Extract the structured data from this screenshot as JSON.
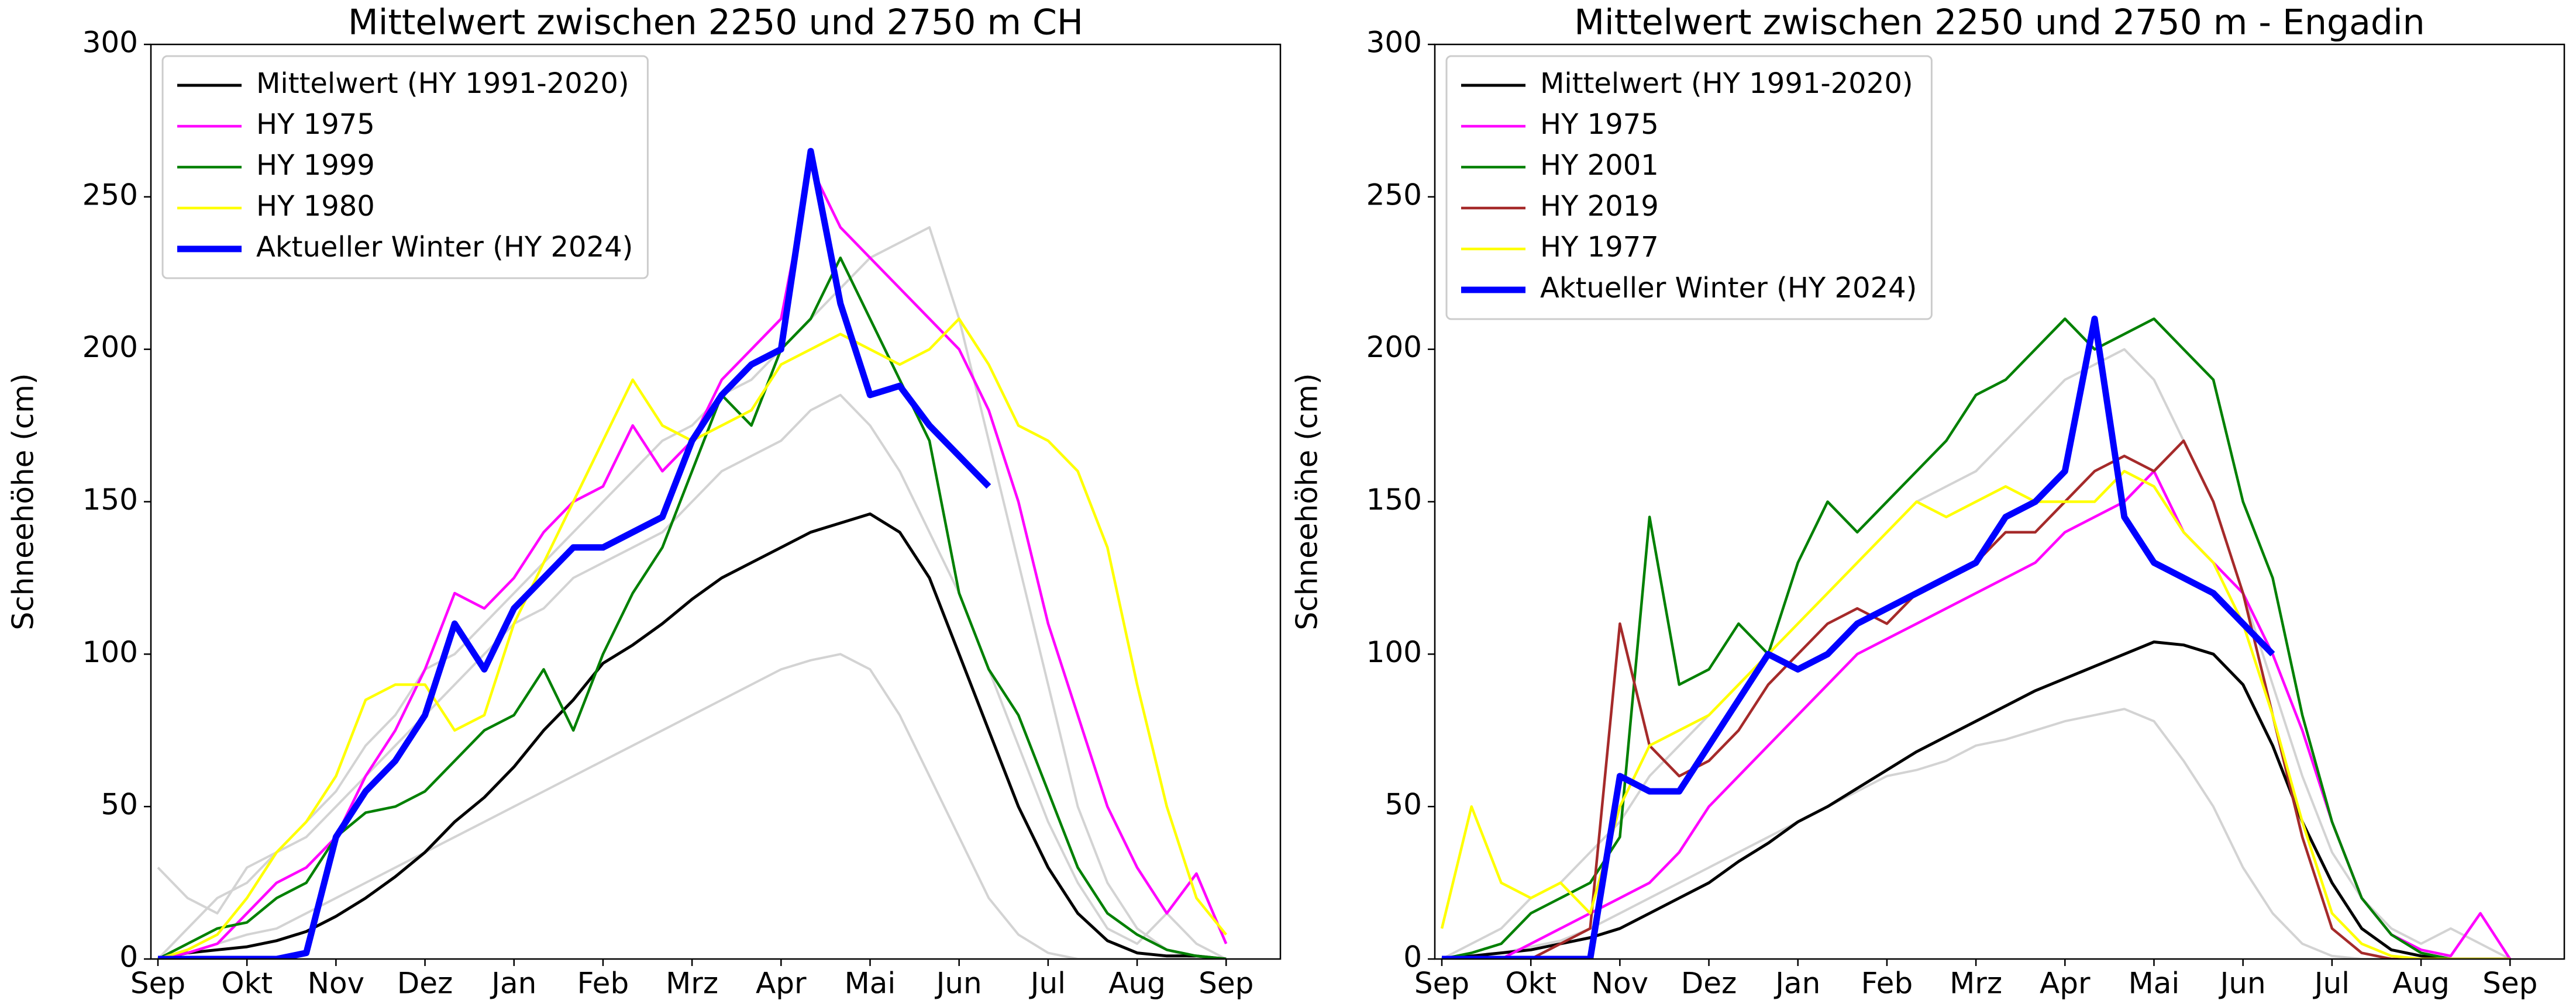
{
  "chart_data": [
    {
      "type": "line",
      "title": "Mittelwert zwischen 2250 und 2750 m  CH",
      "y_label": "Schneehöhe (cm)",
      "categories": [
        "Sep",
        null,
        null,
        "Okt",
        null,
        null,
        "Nov",
        null,
        null,
        "Dez",
        null,
        null,
        "Jan",
        null,
        null,
        "Feb",
        null,
        null,
        "Mrz",
        null,
        null,
        "Apr",
        null,
        null,
        "Mai",
        null,
        null,
        "Jun",
        null,
        null,
        "Jul",
        null,
        null,
        "Aug",
        null,
        null,
        "Sep"
      ],
      "ylim": [
        0,
        300
      ],
      "yticks": [
        0,
        50,
        100,
        150,
        200,
        250,
        300
      ],
      "grid": false,
      "legend": "upper left",
      "series": [
        {
          "color": "#d3d3d3",
          "values": [
            0,
            10,
            20,
            25,
            35,
            45,
            55,
            70,
            80,
            95,
            100,
            110,
            120,
            130,
            140,
            150,
            160,
            170,
            175,
            185,
            190,
            200,
            210,
            220,
            230,
            235,
            240,
            210,
            170,
            130,
            90,
            50,
            25,
            10,
            3,
            0,
            0
          ]
        },
        {
          "color": "#d3d3d3",
          "values": [
            0,
            2,
            5,
            8,
            10,
            15,
            20,
            25,
            30,
            35,
            40,
            45,
            50,
            55,
            60,
            65,
            70,
            75,
            80,
            85,
            90,
            95,
            98,
            100,
            95,
            80,
            60,
            40,
            20,
            8,
            2,
            0,
            0,
            0,
            0,
            0,
            0
          ]
        },
        {
          "color": "#d3d3d3",
          "values": [
            30,
            20,
            15,
            30,
            35,
            40,
            50,
            60,
            70,
            80,
            90,
            100,
            110,
            115,
            125,
            130,
            135,
            140,
            150,
            160,
            165,
            170,
            180,
            185,
            175,
            160,
            140,
            120,
            95,
            70,
            45,
            25,
            10,
            5,
            15,
            5,
            0
          ]
        },
        {
          "name": "Mittelwert (HY 1991-2020)",
          "color": "#000000",
          "width": 5,
          "values": [
            0,
            2,
            3,
            4,
            6,
            9,
            14,
            20,
            27,
            35,
            45,
            53,
            63,
            75,
            85,
            97,
            103,
            110,
            118,
            125,
            130,
            135,
            140,
            143,
            146,
            140,
            125,
            100,
            75,
            50,
            30,
            15,
            6,
            2,
            1,
            1,
            0
          ]
        },
        {
          "name": "HY 1975",
          "color": "#ff00ff",
          "width": 4.5,
          "values": [
            0,
            2,
            5,
            15,
            25,
            30,
            40,
            60,
            75,
            95,
            120,
            115,
            125,
            140,
            150,
            155,
            175,
            160,
            170,
            190,
            200,
            210,
            260,
            240,
            230,
            220,
            210,
            200,
            180,
            150,
            110,
            80,
            50,
            30,
            15,
            28,
            5
          ]
        },
        {
          "name": "HY 1999",
          "color": "#008000",
          "width": 4.5,
          "values": [
            0,
            5,
            10,
            12,
            20,
            25,
            40,
            48,
            50,
            55,
            65,
            75,
            80,
            95,
            75,
            100,
            120,
            135,
            160,
            185,
            175,
            200,
            210,
            230,
            210,
            190,
            170,
            120,
            95,
            80,
            55,
            30,
            15,
            8,
            3,
            1,
            0
          ]
        },
        {
          "name": "HY 1980",
          "color": "#ffff00",
          "width": 4.5,
          "values": [
            0,
            3,
            8,
            20,
            35,
            45,
            60,
            85,
            90,
            90,
            75,
            80,
            110,
            130,
            150,
            170,
            190,
            175,
            170,
            175,
            180,
            195,
            200,
            205,
            200,
            195,
            200,
            210,
            195,
            175,
            170,
            160,
            135,
            90,
            50,
            20,
            8
          ]
        },
        {
          "name": "Aktueller Winter (HY 2024)",
          "color": "#0000ff",
          "width": 11,
          "values": [
            0,
            0,
            0,
            0,
            0,
            2,
            40,
            55,
            65,
            80,
            110,
            95,
            115,
            125,
            135,
            135,
            140,
            145,
            170,
            185,
            195,
            200,
            265,
            215,
            185,
            188,
            175,
            165,
            155,
            null,
            null,
            null,
            null,
            null,
            null,
            null,
            null
          ]
        }
      ]
    },
    {
      "type": "line",
      "title": "Mittelwert zwischen 2250 und 2750 m - Engadin",
      "y_label": "Schneehöhe (cm)",
      "categories": [
        "Sep",
        null,
        null,
        "Okt",
        null,
        null,
        "Nov",
        null,
        null,
        "Dez",
        null,
        null,
        "Jan",
        null,
        null,
        "Feb",
        null,
        null,
        "Mrz",
        null,
        null,
        "Apr",
        null,
        null,
        "Mai",
        null,
        null,
        "Jun",
        null,
        null,
        "Jul",
        null,
        null,
        "Aug",
        null,
        null,
        "Sep"
      ],
      "ylim": [
        0,
        300
      ],
      "yticks": [
        0,
        50,
        100,
        150,
        200,
        250,
        300
      ],
      "grid": false,
      "legend": "upper left",
      "series": [
        {
          "color": "#d3d3d3",
          "values": [
            0,
            5,
            10,
            20,
            25,
            35,
            45,
            60,
            70,
            80,
            90,
            100,
            110,
            120,
            130,
            140,
            150,
            155,
            160,
            170,
            180,
            190,
            195,
            200,
            190,
            170,
            150,
            120,
            90,
            60,
            35,
            20,
            10,
            5,
            10,
            5,
            0
          ]
        },
        {
          "color": "#d3d3d3",
          "values": [
            0,
            1,
            2,
            4,
            6,
            10,
            15,
            20,
            25,
            30,
            35,
            40,
            45,
            50,
            55,
            60,
            62,
            65,
            70,
            72,
            75,
            78,
            80,
            82,
            78,
            65,
            50,
            30,
            15,
            5,
            1,
            0,
            0,
            0,
            0,
            0,
            0
          ]
        },
        {
          "name": "Mittelwert (HY 1991-2020)",
          "color": "#000000",
          "width": 5,
          "values": [
            0,
            1,
            2,
            3,
            5,
            7,
            10,
            15,
            20,
            25,
            32,
            38,
            45,
            50,
            56,
            62,
            68,
            73,
            78,
            83,
            88,
            92,
            96,
            100,
            104,
            103,
            100,
            90,
            70,
            45,
            25,
            10,
            3,
            1,
            0,
            0,
            0
          ]
        },
        {
          "name": "HY 1975",
          "color": "#ff00ff",
          "width": 4.5,
          "values": [
            0,
            0,
            0,
            5,
            10,
            15,
            20,
            25,
            35,
            50,
            60,
            70,
            80,
            90,
            100,
            105,
            110,
            115,
            120,
            125,
            130,
            140,
            145,
            150,
            160,
            140,
            130,
            120,
            100,
            75,
            45,
            20,
            8,
            3,
            1,
            15,
            0
          ]
        },
        {
          "name": "HY 2001",
          "color": "#008000",
          "width": 4.5,
          "values": [
            0,
            2,
            5,
            15,
            20,
            25,
            40,
            145,
            90,
            95,
            110,
            100,
            130,
            150,
            140,
            150,
            160,
            170,
            185,
            190,
            200,
            210,
            200,
            205,
            210,
            200,
            190,
            150,
            125,
            80,
            45,
            20,
            8,
            2,
            0,
            0,
            0
          ]
        },
        {
          "name": "HY 2019",
          "color": "#a52a2a",
          "width": 4.5,
          "values": [
            0,
            0,
            0,
            0,
            5,
            10,
            110,
            70,
            60,
            65,
            75,
            90,
            100,
            110,
            115,
            110,
            120,
            125,
            130,
            140,
            140,
            150,
            160,
            165,
            160,
            170,
            150,
            120,
            80,
            40,
            10,
            2,
            0,
            0,
            0,
            0,
            0
          ]
        },
        {
          "name": "HY 1977",
          "color": "#ffff00",
          "width": 4.5,
          "values": [
            10,
            50,
            25,
            20,
            25,
            15,
            50,
            70,
            75,
            80,
            90,
            100,
            110,
            120,
            130,
            140,
            150,
            145,
            150,
            155,
            150,
            150,
            150,
            160,
            155,
            140,
            130,
            110,
            80,
            45,
            15,
            5,
            1,
            0,
            0,
            0,
            0
          ]
        },
        {
          "name": "Aktueller Winter (HY 2024)",
          "color": "#0000ff",
          "width": 11,
          "values": [
            0,
            0,
            0,
            0,
            0,
            0,
            60,
            55,
            55,
            70,
            85,
            100,
            95,
            100,
            110,
            115,
            120,
            125,
            130,
            145,
            150,
            160,
            210,
            145,
            130,
            125,
            120,
            110,
            100,
            null,
            null,
            null,
            null,
            null,
            null,
            null,
            null
          ]
        }
      ]
    }
  ]
}
